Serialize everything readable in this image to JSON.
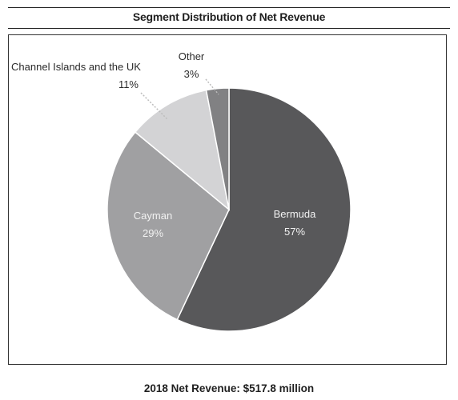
{
  "title": "Segment Distribution of Net Revenue",
  "footer": "2018 Net Revenue: $517.8 million",
  "colors": {
    "Bermuda": "#58585a",
    "Cayman": "#a0a0a2",
    "Channel Islands and the UK": "#d3d3d5",
    "Other": "#818183"
  },
  "chart_data": {
    "type": "pie",
    "title": "Segment Distribution of Net Revenue",
    "slices": [
      {
        "label": "Bermuda",
        "value": 57,
        "value_label": "57%"
      },
      {
        "label": "Cayman",
        "value": 29,
        "value_label": "29%"
      },
      {
        "label": "Channel Islands and the UK",
        "value": 11,
        "value_label": "11%"
      },
      {
        "label": "Other",
        "value": 3,
        "value_label": "3%"
      }
    ],
    "start": "12 o'clock",
    "direction": "clockwise"
  }
}
